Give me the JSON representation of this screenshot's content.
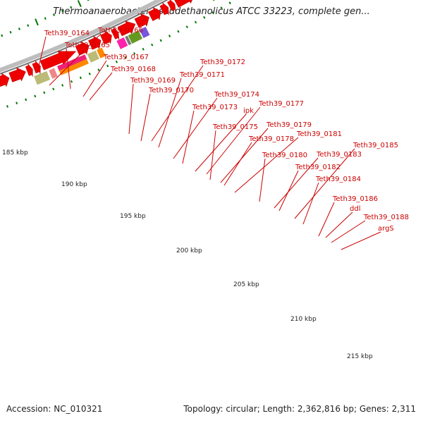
{
  "title": "Thermoanaerobacter pseudethanolicus ATCC 33223, complete gen...",
  "footer": {
    "accession": "Accession: NC_010321",
    "summary": "Topology: circular; Length: 2,362,816 bp; Genes: 2,311"
  },
  "colors": {
    "cds": "#ee0000",
    "label": "#cc0000",
    "backbone": "#bdbdbd",
    "tick": "#007700",
    "feature_colors": [
      "#ff22aa",
      "#bbbb77",
      "#ee8888",
      "#ff8800",
      "#ee2277",
      "#669922",
      "#7755dd",
      "#777777",
      "#cccccc",
      "#22eeaa",
      "#2288ff"
    ]
  },
  "gene_labels": [
    "Teth39_0164",
    "Teth39_0166",
    "Teth39_0165",
    "Teth39_0167",
    "Teth39_0168",
    "Teth39_0169",
    "Teth39_0170",
    "Teth39_0172",
    "Teth39_0171",
    "Teth39_0174",
    "Teth39_0173",
    "ipk",
    "Teth39_0177",
    "Teth39_0175",
    "Teth39_0179",
    "Teth39_0178",
    "Teth39_0181",
    "Teth39_0180",
    "Teth39_0183",
    "Teth39_0182",
    "Teth39_0185",
    "Teth39_0184",
    "Teth39_0186",
    "ddl",
    "Teth39_0188",
    "argS"
  ],
  "kbp_labels": [
    "185 kbp",
    "190 kbp",
    "195 kbp",
    "200 kbp",
    "205 kbp",
    "210 kbp",
    "215 kbp"
  ]
}
